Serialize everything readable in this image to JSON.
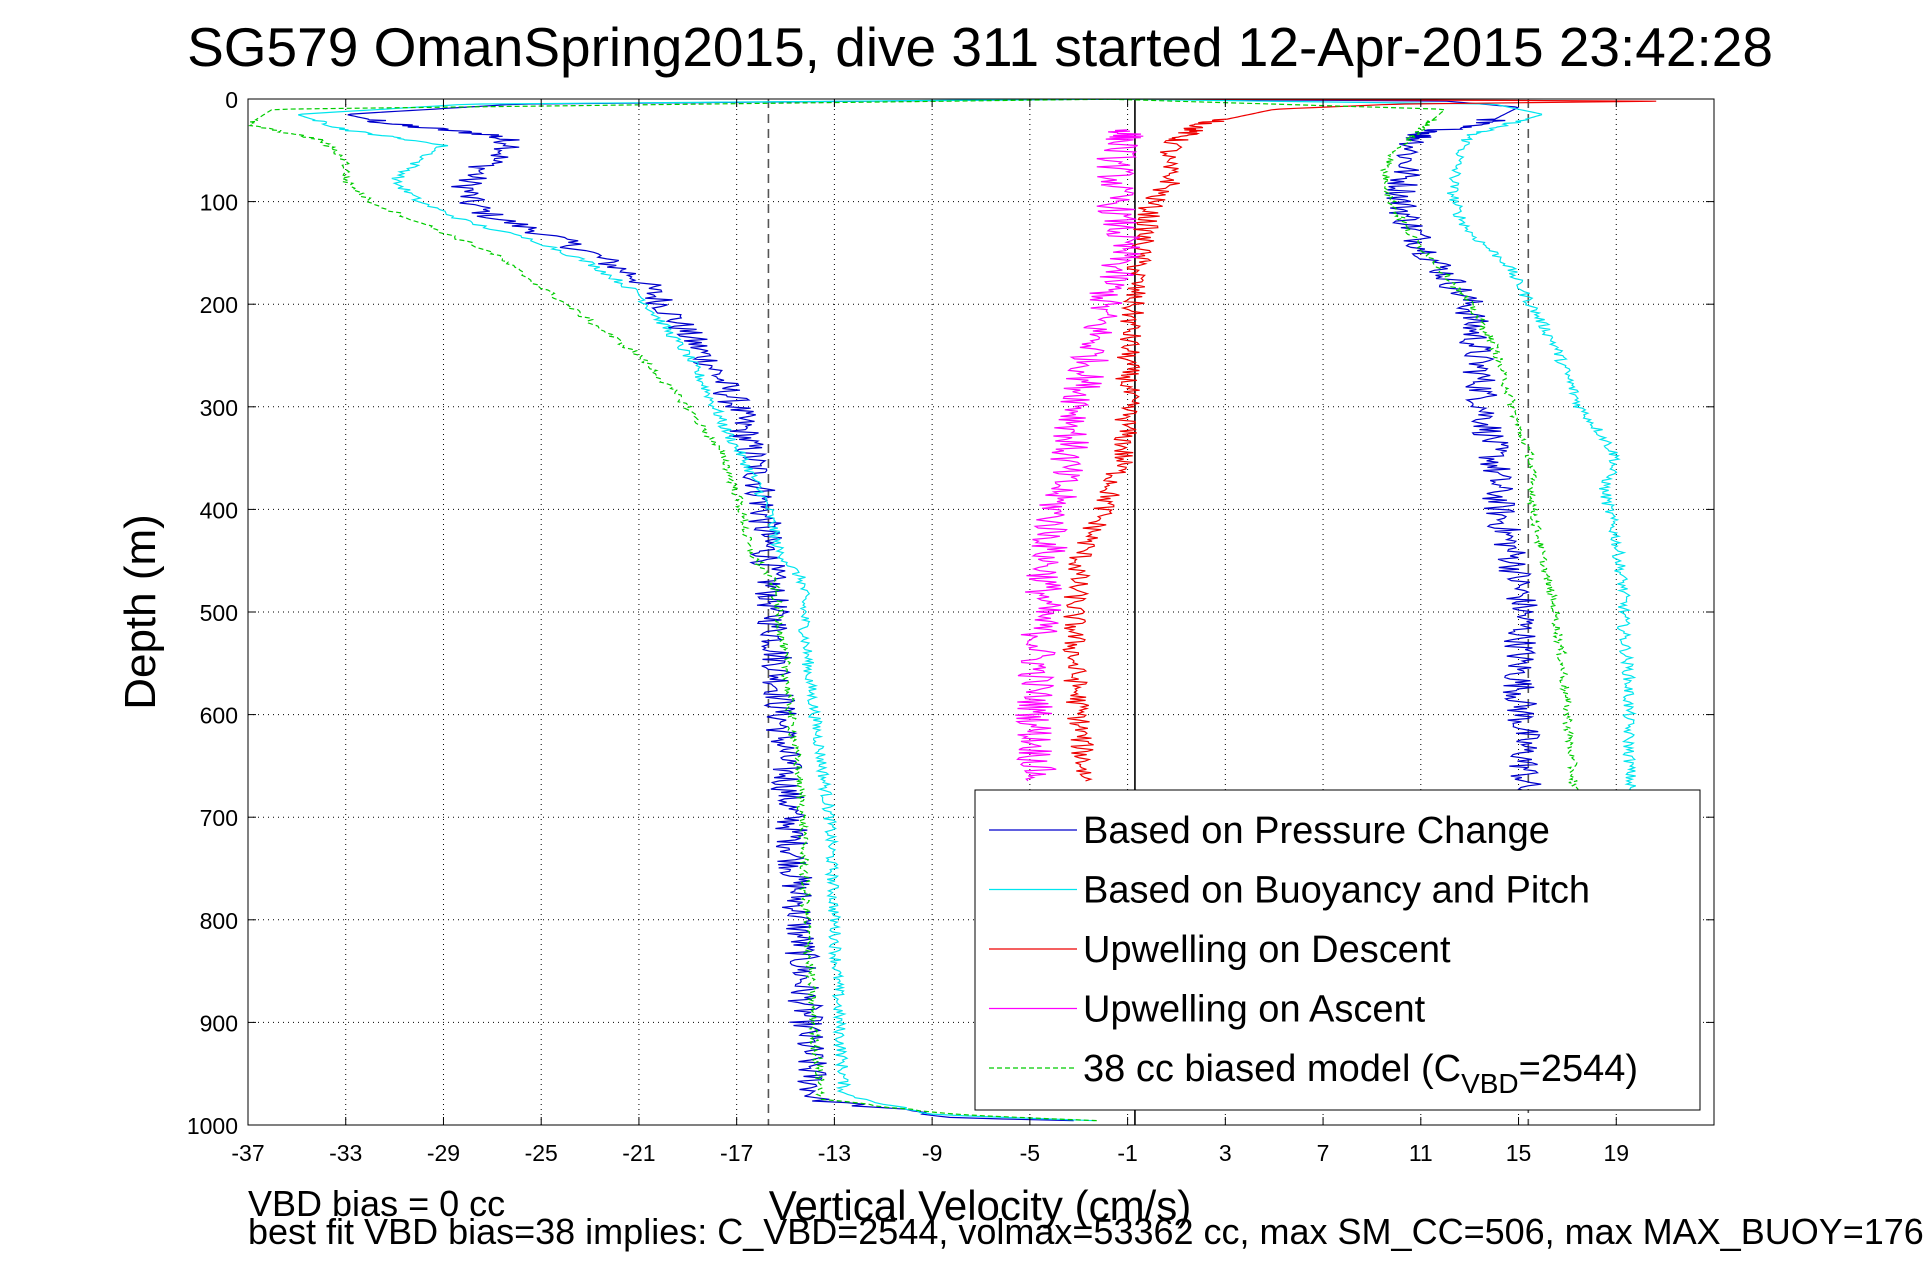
{
  "chart_data": {
    "type": "line",
    "title": "SG579 OmanSpring2015, dive 311 started 12-Apr-2015 23:42:28",
    "xlabel": "Vertical Velocity (cm/s)",
    "ylabel": "Depth (m)",
    "xlim": [
      -37,
      23
    ],
    "ylim": [
      0,
      1000
    ],
    "y_reversed": true,
    "grid": "dotted",
    "legend_position": "lower-right",
    "x_ticks": [
      "-37",
      "-33",
      "-29",
      "-25",
      "-21",
      "-17",
      "-13",
      "-9",
      "-5",
      "-1",
      "3",
      "7",
      "11",
      "15",
      "19"
    ],
    "y_ticks": [
      "0",
      "100",
      "200",
      "300",
      "400",
      "500",
      "600",
      "700",
      "800",
      "900",
      "1000"
    ],
    "reference_lines": [
      {
        "x": -15.7,
        "style": "dashed",
        "color": "#555555"
      },
      {
        "x": 15.4,
        "style": "dashed",
        "color": "#555555"
      },
      {
        "x": -0.7,
        "style": "solid",
        "color": "#000000"
      }
    ],
    "series": [
      {
        "name": "Based on Pressure Change",
        "color": "#0000cc",
        "style": "solid",
        "noise": 0.7,
        "segments": [
          [
            [
              -1,
              0
            ],
            [
              -26,
              5
            ],
            [
              -33,
              15
            ],
            [
              -31,
              25
            ],
            [
              -27,
              35
            ],
            [
              -26,
              45
            ],
            [
              -27,
              60
            ],
            [
              -28,
              80
            ],
            [
              -28,
              100
            ],
            [
              -27,
              115
            ],
            [
              -25,
              130
            ],
            [
              -23,
              150
            ],
            [
              -21,
              175
            ],
            [
              -20,
              200
            ],
            [
              -19,
              230
            ],
            [
              -18,
              260
            ],
            [
              -17,
              300
            ],
            [
              -16.5,
              340
            ],
            [
              -16,
              380
            ],
            [
              -15.8,
              430
            ],
            [
              -15.6,
              480
            ],
            [
              -15.3,
              550
            ],
            [
              -15.2,
              600
            ],
            [
              -15,
              650
            ],
            [
              -14.8,
              700
            ],
            [
              -14.5,
              780
            ],
            [
              -14.3,
              850
            ],
            [
              -14.1,
              920
            ],
            [
              -13.8,
              975
            ],
            [
              -8,
              993
            ],
            [
              -1,
              997
            ]
          ],
          [
            [
              -2,
              0
            ],
            [
              12,
              2
            ],
            [
              15,
              8
            ],
            [
              14,
              20
            ],
            [
              11,
              35
            ],
            [
              10.5,
              55
            ],
            [
              10.3,
              80
            ],
            [
              10.2,
              100
            ],
            [
              10.5,
              120
            ],
            [
              11,
              140
            ],
            [
              12,
              170
            ],
            [
              13,
              200
            ],
            [
              13.3,
              250
            ],
            [
              13.6,
              300
            ],
            [
              14,
              350
            ],
            [
              14.2,
              400
            ],
            [
              14.8,
              450
            ],
            [
              15.2,
              500
            ],
            [
              15,
              560
            ],
            [
              15.2,
              620
            ],
            [
              15.3,
              680
            ]
          ]
        ]
      },
      {
        "name": "Based on Buoyancy and Pitch",
        "color": "#00e5ee",
        "style": "solid",
        "noise": 0.25,
        "segments": [
          [
            [
              -1,
              0
            ],
            [
              -28,
              5
            ],
            [
              -35,
              15
            ],
            [
              -33,
              30
            ],
            [
              -29,
              45
            ],
            [
              -30,
              60
            ],
            [
              -31,
              80
            ],
            [
              -30,
              100
            ],
            [
              -28,
              120
            ],
            [
              -25,
              140
            ],
            [
              -23,
              160
            ],
            [
              -21,
              190
            ],
            [
              -20,
              220
            ],
            [
              -19,
              250
            ],
            [
              -18.3,
              280
            ],
            [
              -17.5,
              320
            ],
            [
              -16.5,
              360
            ],
            [
              -15.7,
              400
            ],
            [
              -15.3,
              440
            ],
            [
              -14.3,
              470
            ],
            [
              -14.2,
              520
            ],
            [
              -14,
              570
            ],
            [
              -13.8,
              600
            ],
            [
              -13.5,
              650
            ],
            [
              -13.2,
              700
            ],
            [
              -13,
              800
            ],
            [
              -12.8,
              900
            ],
            [
              -12.6,
              970
            ],
            [
              -9,
              990
            ],
            [
              -1,
              997
            ]
          ],
          [
            [
              -2,
              0
            ],
            [
              14,
              5
            ],
            [
              16,
              15
            ],
            [
              13,
              35
            ],
            [
              12.5,
              60
            ],
            [
              12.3,
              90
            ],
            [
              12.5,
              110
            ],
            [
              13,
              130
            ],
            [
              14.5,
              160
            ],
            [
              15.5,
              200
            ],
            [
              16.5,
              240
            ],
            [
              17,
              270
            ],
            [
              17.5,
              300
            ],
            [
              18.5,
              330
            ],
            [
              19,
              350
            ],
            [
              18.5,
              380
            ],
            [
              19,
              430
            ],
            [
              19.3,
              480
            ],
            [
              19.3,
              520
            ],
            [
              19.5,
              560
            ],
            [
              19.5,
              620
            ],
            [
              19.6,
              680
            ]
          ]
        ]
      },
      {
        "name": "Upwelling on Descent",
        "color": "#ee0000",
        "style": "solid",
        "noise": 0.5,
        "segments": [
          [
            [
              -1,
              0
            ],
            [
              21,
              2
            ],
            [
              10,
              5
            ],
            [
              5,
              10
            ],
            [
              2,
              25
            ],
            [
              1,
              40
            ],
            [
              0.5,
              60
            ],
            [
              0.8,
              80
            ],
            [
              0,
              100
            ],
            [
              -0.5,
              150
            ],
            [
              -0.8,
              200
            ],
            [
              -1,
              250
            ],
            [
              -1,
              300
            ],
            [
              -1.2,
              350
            ],
            [
              -2,
              400
            ],
            [
              -3,
              450
            ],
            [
              -3.2,
              500
            ],
            [
              -3.2,
              550
            ],
            [
              -3,
              600
            ],
            [
              -2.8,
              650
            ],
            [
              -2.7,
              665
            ]
          ]
        ]
      },
      {
        "name": "Upwelling on Ascent",
        "color": "#ff00ff",
        "style": "solid",
        "noise": 0.8,
        "segments": [
          [
            [
              -1,
              30
            ],
            [
              -1.5,
              60
            ],
            [
              -1.5,
              100
            ],
            [
              -1.2,
              150
            ],
            [
              -2,
              200
            ],
            [
              -2.5,
              250
            ],
            [
              -3,
              300
            ],
            [
              -3.5,
              350
            ],
            [
              -4,
              400
            ],
            [
              -4.3,
              450
            ],
            [
              -4.5,
              500
            ],
            [
              -4.7,
              550
            ],
            [
              -4.8,
              600
            ],
            [
              -4.7,
              665
            ]
          ]
        ]
      },
      {
        "name": "38 cc biased model (C_VBD=2544)",
        "color": "#00cc00",
        "style": "dashed",
        "noise": 0.2,
        "segments": [
          [
            [
              -1,
              0
            ],
            [
              -36,
              10
            ],
            [
              -37,
              25
            ],
            [
              -34,
              40
            ],
            [
              -33,
              60
            ],
            [
              -33,
              80
            ],
            [
              -32,
              100
            ],
            [
              -30,
              120
            ],
            [
              -27,
              150
            ],
            [
              -24,
              200
            ],
            [
              -21,
              250
            ],
            [
              -19,
              300
            ],
            [
              -17.5,
              350
            ],
            [
              -16.8,
              400
            ],
            [
              -16.5,
              440
            ],
            [
              -15.5,
              470
            ],
            [
              -15.3,
              500
            ],
            [
              -15,
              550
            ],
            [
              -14.8,
              600
            ],
            [
              -14.5,
              650
            ],
            [
              -14.3,
              700
            ],
            [
              -14.2,
              780
            ],
            [
              -14,
              850
            ],
            [
              -13.8,
              920
            ],
            [
              -13.5,
              975
            ],
            [
              -8,
              990
            ],
            [
              -1,
              997
            ]
          ],
          [
            [
              -2,
              0
            ],
            [
              12,
              10
            ],
            [
              11,
              30
            ],
            [
              10,
              50
            ],
            [
              9.5,
              70
            ],
            [
              9.8,
              100
            ],
            [
              10.5,
              130
            ],
            [
              12,
              170
            ],
            [
              13,
              200
            ],
            [
              14,
              240
            ],
            [
              14.5,
              280
            ],
            [
              15,
              320
            ],
            [
              15.5,
              350
            ],
            [
              15.6,
              400
            ],
            [
              16,
              450
            ],
            [
              16.5,
              500
            ],
            [
              16.8,
              550
            ],
            [
              17,
              600
            ],
            [
              17.2,
              650
            ],
            [
              17.3,
              680
            ]
          ]
        ]
      }
    ],
    "legend_entries": [
      {
        "series": 0,
        "text": "Based on Pressure Change"
      },
      {
        "series": 1,
        "text": "Based on Buoyancy and Pitch"
      },
      {
        "series": 2,
        "text": "Upwelling on Descent"
      },
      {
        "series": 3,
        "text": "Upwelling on Ascent"
      },
      {
        "series": 4,
        "text_main": "38 cc biased model (C",
        "text_sub": "VBD",
        "text_tail": "=2544)"
      }
    ]
  },
  "footnotes": {
    "line1": "VBD bias = 0 cc",
    "line2": "best fit VBD bias=38 implies: C_VBD=2544, volmax=53362 cc, max SM_CC=506, max MAX_BUOY=176"
  }
}
